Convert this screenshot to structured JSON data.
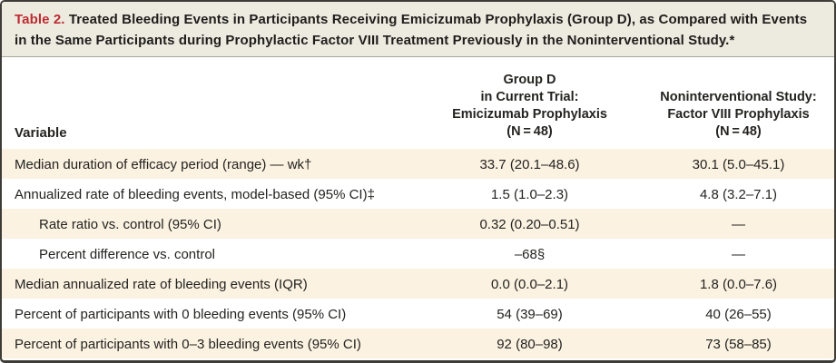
{
  "title": {
    "label": "Table 2.",
    "text": " Treated Bleeding Events in Participants Receiving Emicizumab Prophylaxis (Group D), as Compared with Events in the Same Participants during Prophylactic Factor VIII Treatment Previously in the Noninterventional Study.*"
  },
  "table": {
    "columns": [
      {
        "header": "Variable"
      },
      {
        "header_lines": [
          "Group D",
          "in Current Trial:",
          "Emicizumab Prophylaxis",
          "(N = 48)"
        ]
      },
      {
        "header_lines": [
          "Noninterventional Study:",
          "Factor VIII Prophylaxis",
          "(N = 48)"
        ]
      }
    ],
    "rows": [
      {
        "variable": "Median duration of efficacy period (range) — wk†",
        "group_d": "33.7 (20.1–48.6)",
        "ni_study": "30.1 (5.0–45.1)"
      },
      {
        "variable": "Annualized rate of bleeding events, model-based (95% CI)‡",
        "group_d": "1.5 (1.0–2.3)",
        "ni_study": "4.8 (3.2–7.1)"
      },
      {
        "variable": "Rate ratio vs. control (95% CI)",
        "group_d": "0.32 (0.20–0.51)",
        "ni_study": "—"
      },
      {
        "variable": "Percent difference vs. control",
        "group_d": "–68§",
        "ni_study": "—"
      },
      {
        "variable": "Median annualized rate of bleeding events (IQR)",
        "group_d": "0.0 (0.0–2.1)",
        "ni_study": "1.8 (0.0–7.6)"
      },
      {
        "variable": "Percent of participants with 0 bleeding events (95% CI)",
        "group_d": "54 (39–69)",
        "ni_study": "40 (26–55)"
      },
      {
        "variable": "Percent of participants with 0–3 bleeding events (95% CI)",
        "group_d": "92 (80–98)",
        "ni_study": "73 (58–85)"
      }
    ]
  },
  "colors": {
    "title_band_bg": "#edebe0",
    "shaded_row_bg": "#fbf2e1",
    "table_border": "#3e3c38",
    "title_label_red": "#bd2b32",
    "text": "#242320"
  }
}
